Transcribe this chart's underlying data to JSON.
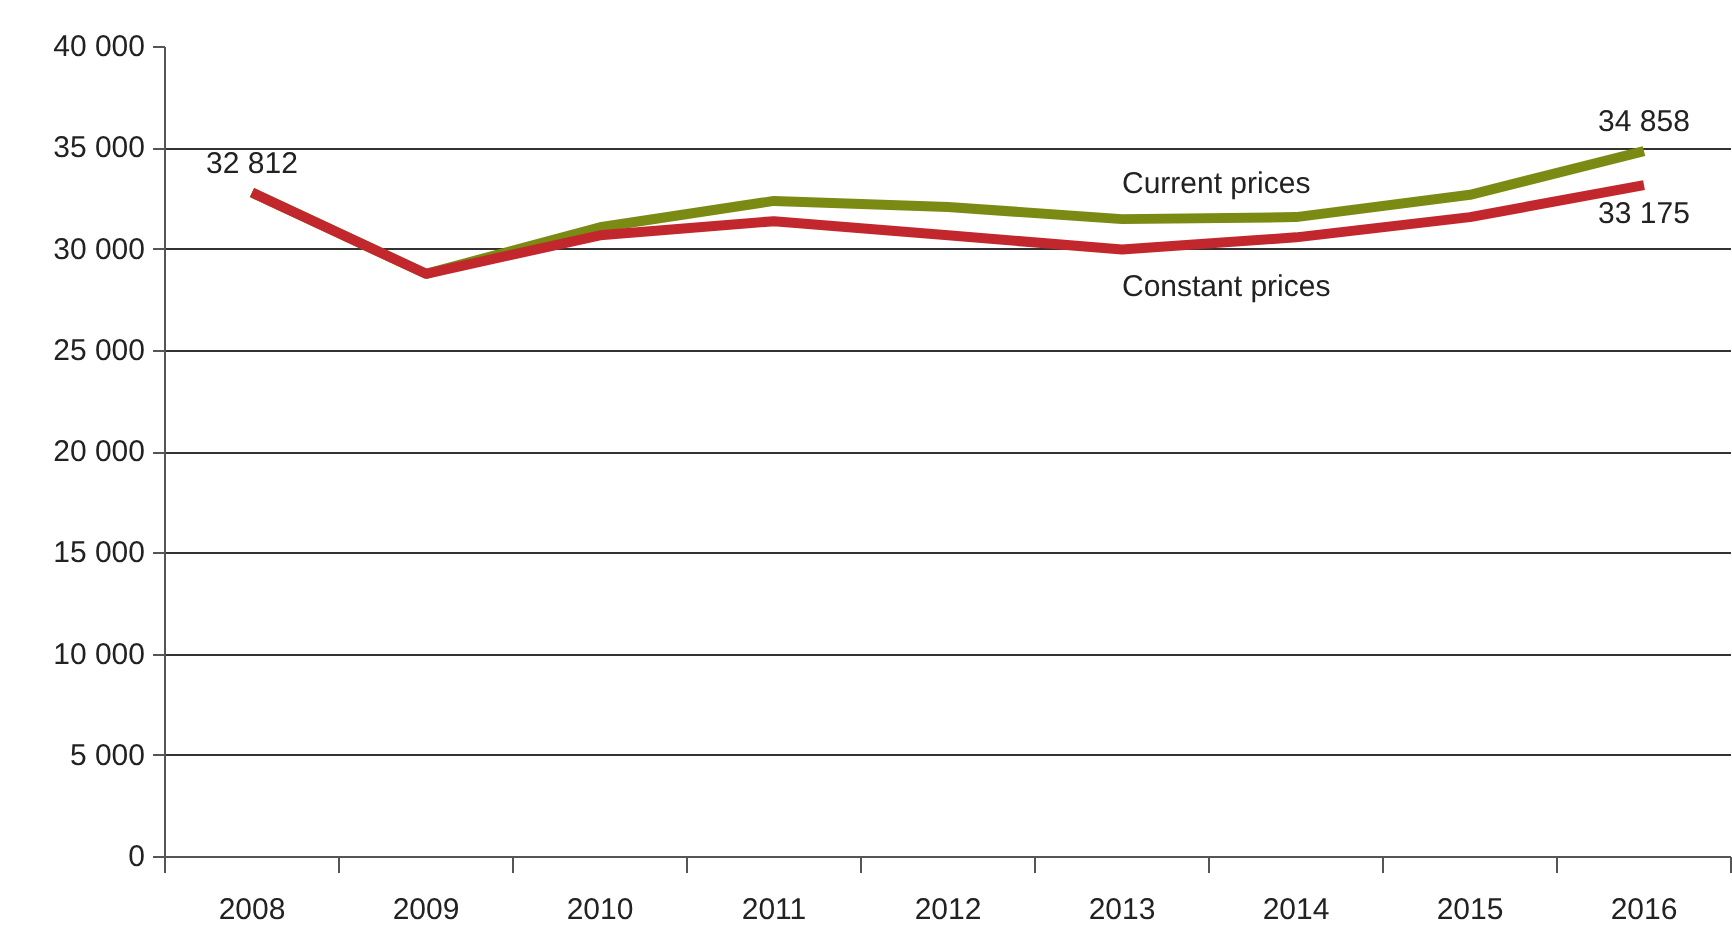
{
  "chart_data": {
    "type": "line",
    "categories": [
      "2008",
      "2009",
      "2010",
      "2011",
      "2012",
      "2013",
      "2014",
      "2015",
      "2016"
    ],
    "series": [
      {
        "name": "Current prices",
        "color": "#7b8a12",
        "values": [
          32812,
          28800,
          31100,
          32400,
          32100,
          31500,
          31600,
          32700,
          34858
        ],
        "value_labels": [
          null,
          null,
          null,
          null,
          null,
          null,
          null,
          null,
          "34 858"
        ]
      },
      {
        "name": "Constant prices",
        "color": "#c1272d",
        "values": [
          32812,
          28800,
          30700,
          31400,
          30700,
          30000,
          30600,
          31600,
          33175
        ],
        "value_labels": [
          "32 812",
          null,
          null,
          null,
          null,
          null,
          null,
          null,
          "33 175"
        ]
      }
    ],
    "ylim": [
      0,
      40000
    ],
    "yticks": [
      0,
      {
        "value": 5000,
        "label": "5 000"
      },
      {
        "value": 10000,
        "label": "10 000"
      },
      {
        "value": 15000,
        "label": "15 000"
      },
      {
        "value": 20000,
        "label": "20 000"
      },
      {
        "value": 25000,
        "label": "25 000"
      },
      {
        "value": 30000,
        "label": "30 000"
      },
      {
        "value": 35000,
        "label": "35 000"
      },
      {
        "value": 40000,
        "label": "40 000"
      }
    ],
    "grid": "y",
    "legend": false,
    "marker": "none",
    "line_style": "solid"
  }
}
